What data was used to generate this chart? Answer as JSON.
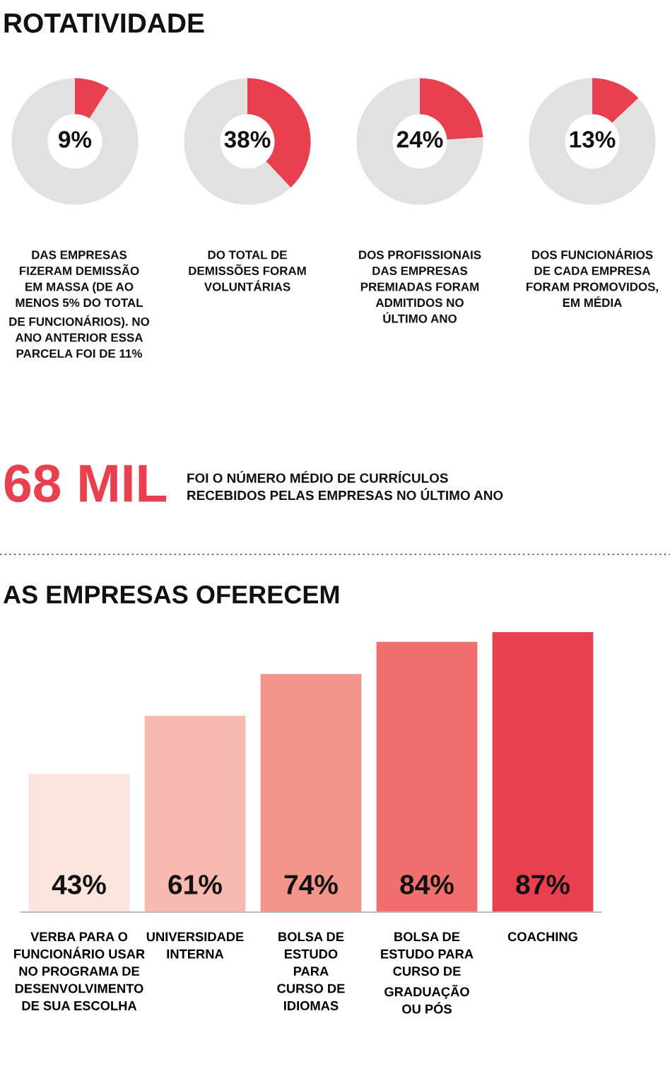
{
  "chart_data": [
    {
      "type": "donut",
      "title": "ROTATIVIDADE",
      "categories": [
        null,
        null
      ],
      "values": [
        9,
        91
      ],
      "colors": [
        "#e8404f",
        "#e1e1e1"
      ],
      "value_labels": [
        "9%",
        null
      ],
      "annotations": [
        "DAS EMPRESAS\nFIZERAM DEMISSÃO\nEM MASSA (DE AO\nMENOS 5% DO TOTAL\nDE FUNCIONÁRIOS). NO\nANO ANTERIOR ESSA\nPARCELA FOI DE 11%"
      ]
    },
    {
      "type": "donut",
      "categories": [
        null,
        null
      ],
      "values": [
        38,
        62
      ],
      "colors": [
        "#e8404f",
        "#e1e1e1"
      ],
      "value_labels": [
        "38%",
        null
      ],
      "annotations": [
        "DO TOTAL DE\nDEMISSÕES FORAM\nVOLUNTÁRIAS"
      ]
    },
    {
      "type": "donut",
      "categories": [
        null,
        null
      ],
      "values": [
        24,
        76
      ],
      "colors": [
        "#e8404f",
        "#e1e1e1"
      ],
      "value_labels": [
        "24%",
        null
      ],
      "annotations": [
        "DOS PROFISSIONAIS\nDAS EMPRESAS\nPREMIADAS FORAM\nADMITIDOS NO\nÚLTIMO ANO"
      ]
    },
    {
      "type": "donut",
      "categories": [
        null,
        null
      ],
      "values": [
        13,
        87
      ],
      "colors": [
        "#e8404f",
        "#e1e1e1"
      ],
      "value_labels": [
        "13%",
        null
      ],
      "annotations": [
        "DOS FUNCIONÁRIOS\nDE CADA EMPRESA\nFORAM PROMOVIDOS,\nEM MÉDIA"
      ]
    },
    {
      "type": "other",
      "annotations": [
        "68 MIL",
        "FOI O NÚMERO MÉDIO DE CURRÍCULOS\nRECEBIDOS PELAS EMPRESAS NO ÚLTIMO ANO"
      ]
    },
    {
      "type": "bar",
      "title": "AS EMPRESAS OFERECEM",
      "categories": [
        "VERBA PARA O\nFUNCIONÁRIO USAR\nNO PROGRAMA DE\nDESENVOLVIMENTO\nDE SUA ESCOLHA",
        "UNIVERSIDADE\nINTERNA",
        "BOLSA DE\nESTUDO\nPARA\nCURSO DE\nIDIOMAS",
        "BOLSA DE\nESTUDO PARA\nCURSO DE\nGRADUAÇÃO\nOU PÓS",
        "COACHING"
      ],
      "values": [
        43,
        61,
        74,
        84,
        87
      ],
      "colors": [
        "#fce4df",
        "#f7b9b0",
        "#f3958a",
        "#ef6f6d",
        "#e94050"
      ],
      "value_labels": [
        "43%",
        "61%",
        "74%",
        "84%",
        "87%"
      ],
      "grid": false,
      "legend": false,
      "tick_labels": "x"
    }
  ]
}
